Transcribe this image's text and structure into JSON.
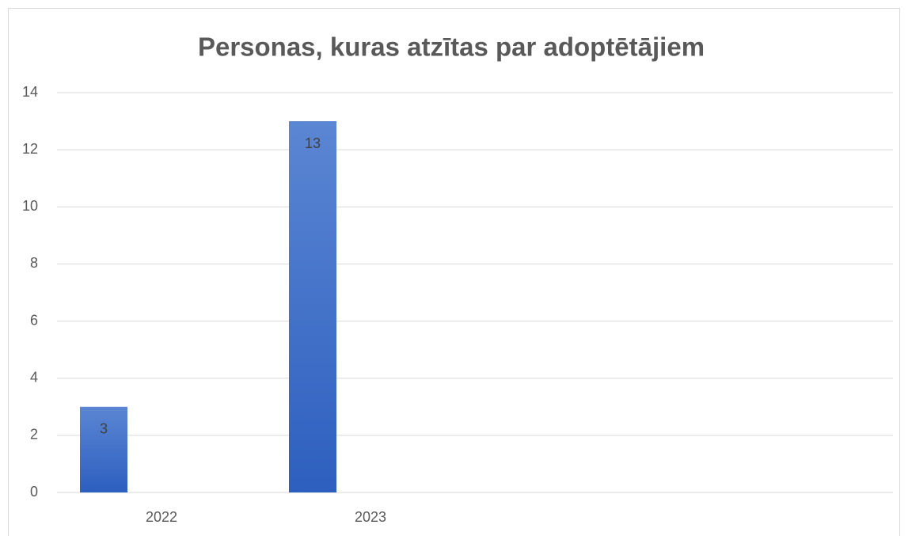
{
  "chart_data": {
    "type": "bar",
    "title": "Personas, kuras atzītas par adoptētājiem",
    "categories": [
      "2022",
      "2023",
      null,
      null
    ],
    "values": [
      3,
      13,
      null,
      null
    ],
    "color": "#4472c4",
    "ylim": [
      0,
      14
    ],
    "yticks": [
      0,
      2,
      4,
      6,
      8,
      10,
      12,
      14
    ],
    "grid": true
  }
}
